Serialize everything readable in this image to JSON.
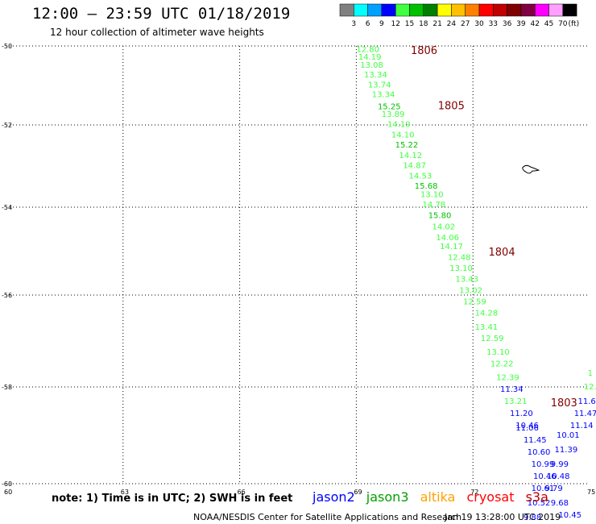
{
  "header": {
    "title": "12:00 – 23:59 UTC 01/18/2019",
    "subtitle": "12 hour collection of altimeter wave heights"
  },
  "color_scale": {
    "unit": "(ft)",
    "steps": [
      {
        "label": "3",
        "color": "#808080"
      },
      {
        "label": "6",
        "color": "#00ffff"
      },
      {
        "label": "9",
        "color": "#00a0ff"
      },
      {
        "label": "12",
        "color": "#0000ff"
      },
      {
        "label": "15",
        "color": "#40ff40"
      },
      {
        "label": "18",
        "color": "#00c000"
      },
      {
        "label": "21",
        "color": "#008000"
      },
      {
        "label": "24",
        "color": "#ffff00"
      },
      {
        "label": "27",
        "color": "#ffc000"
      },
      {
        "label": "30",
        "color": "#ff8000"
      },
      {
        "label": "33",
        "color": "#ff0000"
      },
      {
        "label": "36",
        "color": "#c00000"
      },
      {
        "label": "39",
        "color": "#800000"
      },
      {
        "label": "42",
        "color": "#800040"
      },
      {
        "label": "45",
        "color": "#ff00ff"
      },
      {
        "label": "70",
        "color": "#ffa0ff"
      },
      {
        "label": "",
        "color": "#000000"
      }
    ]
  },
  "map": {
    "lon_range": [
      60,
      75
    ],
    "lat_range": [
      -60,
      -50
    ],
    "lat_ticks": [
      "-50",
      "-52",
      "-54",
      "-56",
      "-58",
      "-60"
    ],
    "lon_ticks": [
      "60",
      "63",
      "66",
      "69",
      "72",
      "75"
    ]
  },
  "track_labels": [
    {
      "text": "1806",
      "lon": 70.4,
      "lat": -50.2
    },
    {
      "text": "1805",
      "lon": 71.1,
      "lat": -51.6
    },
    {
      "text": "1804",
      "lon": 72.4,
      "lat": -55.1
    },
    {
      "text": "1803",
      "lon": 74.0,
      "lat": -58.4
    }
  ],
  "observations": [
    {
      "text": "12.80",
      "lon": 69.0,
      "lat": -50.15,
      "color": "#40ff40"
    },
    {
      "text": "14.19",
      "lon": 69.05,
      "lat": -50.35,
      "color": "#40ff40"
    },
    {
      "text": "13.08",
      "lon": 69.1,
      "lat": -50.55,
      "color": "#40ff40"
    },
    {
      "text": "13.34",
      "lon": 69.2,
      "lat": -50.8,
      "color": "#40ff40"
    },
    {
      "text": "13.74",
      "lon": 69.3,
      "lat": -51.05,
      "color": "#40ff40"
    },
    {
      "text": "13.34",
      "lon": 69.4,
      "lat": -51.3,
      "color": "#40ff40"
    },
    {
      "text": "15.25",
      "lon": 69.55,
      "lat": -51.6,
      "color": "#00c000"
    },
    {
      "text": "13.89",
      "lon": 69.65,
      "lat": -51.8,
      "color": "#40ff40"
    },
    {
      "text": "14.19",
      "lon": 69.8,
      "lat": -52.05,
      "color": "#40ff40"
    },
    {
      "text": "14.10",
      "lon": 69.9,
      "lat": -52.3,
      "color": "#40ff40"
    },
    {
      "text": "15.22",
      "lon": 70.0,
      "lat": -52.55,
      "color": "#00c000"
    },
    {
      "text": "14.12",
      "lon": 70.1,
      "lat": -52.8,
      "color": "#40ff40"
    },
    {
      "text": "14.87",
      "lon": 70.2,
      "lat": -53.05,
      "color": "#40ff40"
    },
    {
      "text": "14.53",
      "lon": 70.35,
      "lat": -53.3,
      "color": "#40ff40"
    },
    {
      "text": "15.68",
      "lon": 70.5,
      "lat": -53.55,
      "color": "#00c000"
    },
    {
      "text": "13.10",
      "lon": 70.65,
      "lat": -53.75,
      "color": "#40ff40"
    },
    {
      "text": "14.78",
      "lon": 70.7,
      "lat": -54.0,
      "color": "#40ff40"
    },
    {
      "text": "15.80",
      "lon": 70.85,
      "lat": -54.25,
      "color": "#00c000"
    },
    {
      "text": "14.02",
      "lon": 70.95,
      "lat": -54.5,
      "color": "#40ff40"
    },
    {
      "text": "14.06",
      "lon": 71.05,
      "lat": -54.75,
      "color": "#40ff40"
    },
    {
      "text": "14.17",
      "lon": 71.15,
      "lat": -54.95,
      "color": "#40ff40"
    },
    {
      "text": "12.48",
      "lon": 71.35,
      "lat": -55.2,
      "color": "#40ff40"
    },
    {
      "text": "13.10",
      "lon": 71.4,
      "lat": -55.45,
      "color": "#40ff40"
    },
    {
      "text": "13.43",
      "lon": 71.55,
      "lat": -55.7,
      "color": "#40ff40"
    },
    {
      "text": "13.02",
      "lon": 71.65,
      "lat": -55.95,
      "color": "#40ff40"
    },
    {
      "text": "12.59",
      "lon": 71.75,
      "lat": -56.2,
      "color": "#40ff40"
    },
    {
      "text": "14.28",
      "lon": 72.05,
      "lat": -56.45,
      "color": "#40ff40"
    },
    {
      "text": "13.41",
      "lon": 72.05,
      "lat": -56.75,
      "color": "#40ff40"
    },
    {
      "text": "12.59",
      "lon": 72.2,
      "lat": -57.0,
      "color": "#40ff40"
    },
    {
      "text": "13.10",
      "lon": 72.35,
      "lat": -57.3,
      "color": "#40ff40"
    },
    {
      "text": "12.22",
      "lon": 72.45,
      "lat": -57.55,
      "color": "#40ff40"
    },
    {
      "text": "12.39",
      "lon": 72.6,
      "lat": -57.85,
      "color": "#40ff40"
    },
    {
      "text": "11.34",
      "lon": 72.7,
      "lat": -58.1,
      "color": "#0000ff"
    },
    {
      "text": "13.21",
      "lon": 72.8,
      "lat": -58.35,
      "color": "#40ff40"
    },
    {
      "text": "11.20",
      "lon": 72.95,
      "lat": -58.6,
      "color": "#0000ff"
    },
    {
      "text": "10.46",
      "lon": 73.1,
      "lat": -58.85,
      "color": "#0000ff"
    },
    {
      "text": "11.06",
      "lon": 73.1,
      "lat": -58.9,
      "color": "#0000ff"
    },
    {
      "text": "11.45",
      "lon": 73.3,
      "lat": -59.15,
      "color": "#0000ff"
    },
    {
      "text": "10.60",
      "lon": 73.4,
      "lat": -59.4,
      "color": "#0000ff"
    },
    {
      "text": "10.99",
      "lon": 73.5,
      "lat": -59.65,
      "color": "#0000ff"
    },
    {
      "text": "10.46",
      "lon": 73.55,
      "lat": -59.9,
      "color": "#0000ff"
    },
    {
      "text": "10.61",
      "lon": 73.5,
      "lat": -60.15,
      "color": "#0000ff"
    },
    {
      "text": "10.52",
      "lon": 73.4,
      "lat": -60.45,
      "color": "#0000ff"
    },
    {
      "text": "9.88",
      "lon": 73.3,
      "lat": -60.75,
      "color": "#0000ff"
    },
    {
      "text": "10.01",
      "lon": 74.15,
      "lat": -59.05,
      "color": "#0000ff"
    },
    {
      "text": "11.39",
      "lon": 74.1,
      "lat": -59.35,
      "color": "#0000ff"
    },
    {
      "text": "9.99",
      "lon": 74.0,
      "lat": -59.65,
      "color": "#0000ff"
    },
    {
      "text": "10.48",
      "lon": 73.9,
      "lat": -59.9,
      "color": "#0000ff"
    },
    {
      "text": "9.79",
      "lon": 73.85,
      "lat": -60.15,
      "color": "#0000ff"
    },
    {
      "text": "9.68",
      "lon": 74.0,
      "lat": -60.45,
      "color": "#0000ff"
    },
    {
      "text": "10.45",
      "lon": 74.2,
      "lat": -60.7,
      "color": "#0000ff"
    },
    {
      "text": "11.14",
      "lon": 74.5,
      "lat": -58.85,
      "color": "#0000ff"
    },
    {
      "text": "11.47",
      "lon": 74.6,
      "lat": -58.6,
      "color": "#0000ff"
    },
    {
      "text": "11.6",
      "lon": 74.7,
      "lat": -58.35,
      "color": "#0000ff"
    },
    {
      "text": "12.",
      "lon": 74.85,
      "lat": -58.05,
      "color": "#40ff40"
    },
    {
      "text": "1",
      "lon": 74.95,
      "lat": -57.75,
      "color": "#40ff40"
    }
  ],
  "island": {
    "name": "heard-island",
    "lon": 73.4,
    "lat": -53.1
  },
  "footer": {
    "note": "note:  1) Time is in UTC;  2) SWH is in feet",
    "legend": [
      {
        "label": "jason2",
        "color": "#0000ff"
      },
      {
        "label": "jason3",
        "color": "#00a000"
      },
      {
        "label": "altika",
        "color": "#ffa000"
      },
      {
        "label": "cryosat",
        "color": "#ff0000"
      },
      {
        "label": "s3a",
        "color": "#c00000"
      }
    ],
    "credit": "NOAA/NESDIS Center for Satellite Applications and Research",
    "timestamp": "Jan 19 13:28:00 UTC 2019"
  }
}
